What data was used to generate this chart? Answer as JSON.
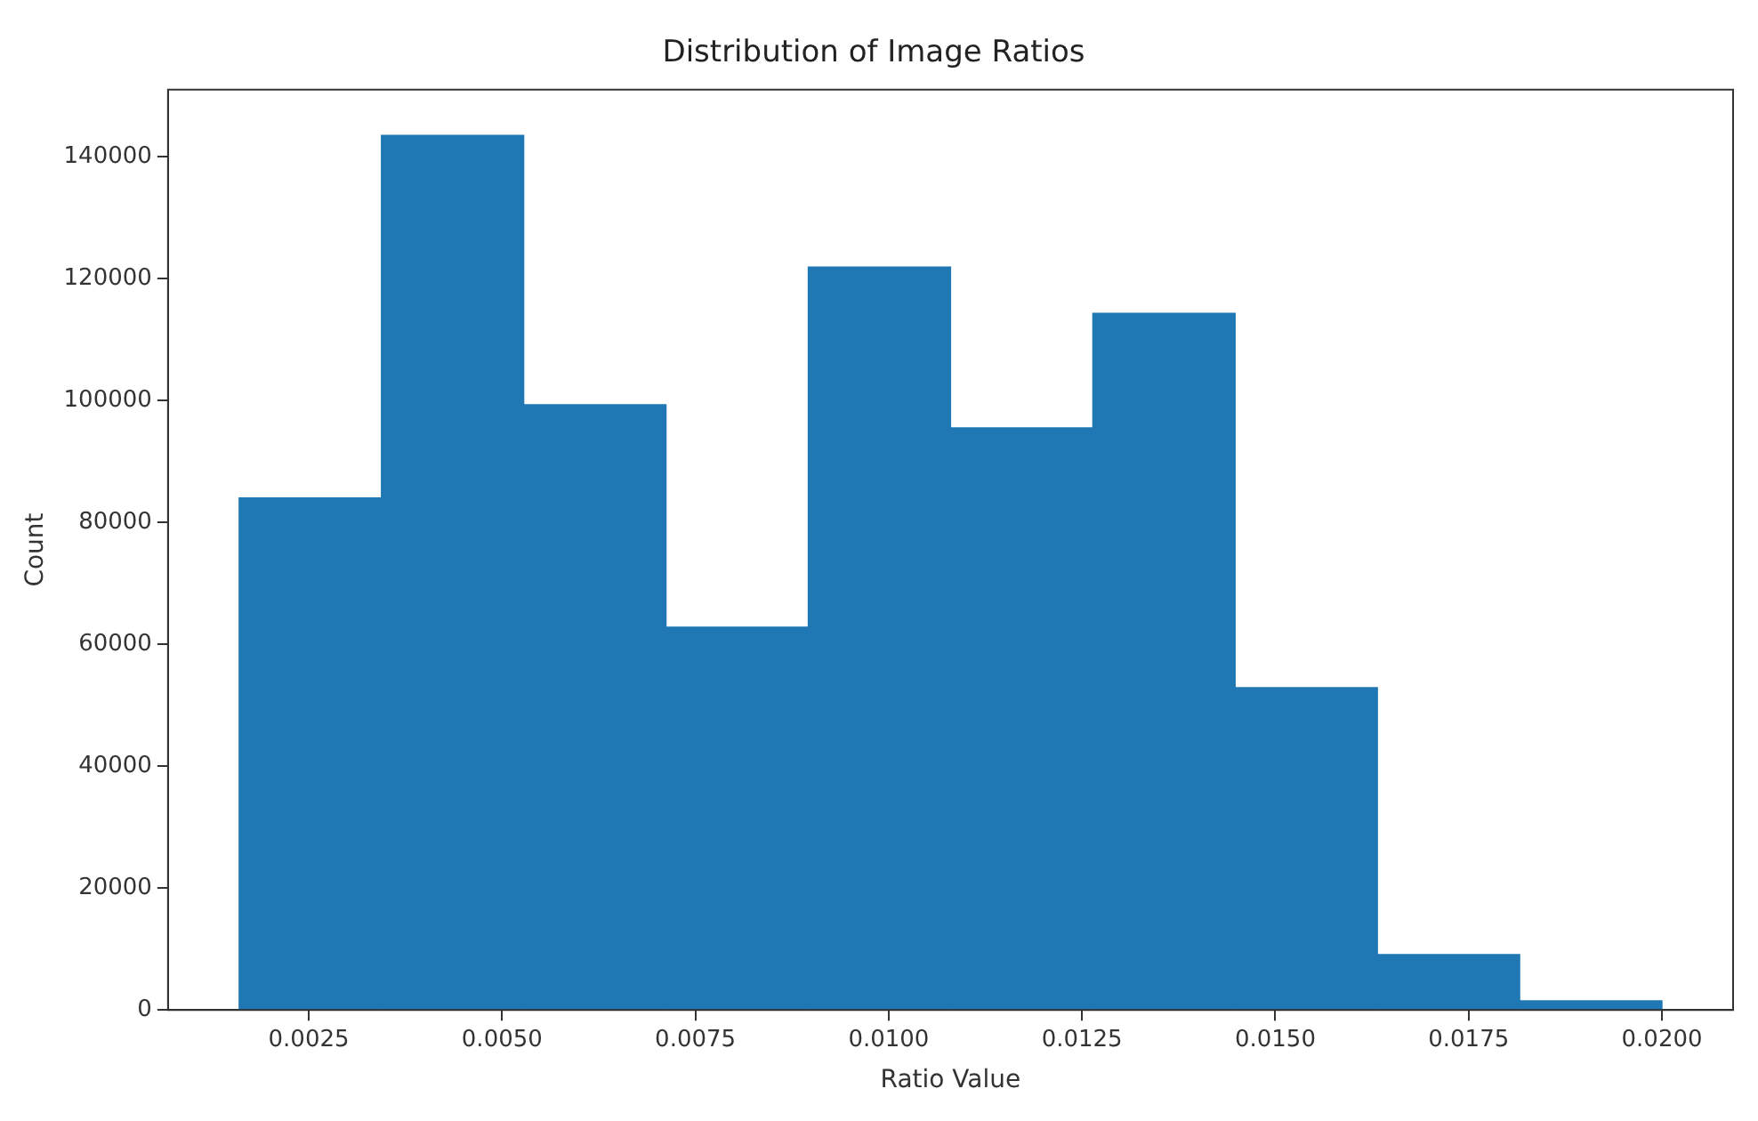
{
  "chart_data": {
    "type": "histogram",
    "title": "Distribution of Image Ratios",
    "xlabel": "Ratio Value",
    "ylabel": "Count",
    "bins": [
      0.0016,
      0.00344,
      0.00528,
      0.00712,
      0.00896,
      0.0108,
      0.01264,
      0.01448,
      0.01632,
      0.01816,
      0.02
    ],
    "values": [
      84000,
      143500,
      99300,
      62800,
      121900,
      95500,
      114300,
      52900,
      9100,
      1500
    ],
    "color": "#1f77b4",
    "xlim": [
      0.00068,
      0.02092
    ],
    "xticks": [
      0.0025,
      {
        "value": 0.005,
        "label": "0.0050"
      },
      0.0075,
      {
        "value": 0.01,
        "label": "0.0100"
      },
      0.0125,
      {
        "value": 0.015,
        "label": "0.0150"
      },
      0.0175,
      {
        "value": 0.02,
        "label": "0.0200"
      }
    ],
    "ylim": [
      0,
      151000
    ],
    "yticks": [
      0,
      20000,
      40000,
      60000,
      80000,
      100000,
      120000,
      140000
    ],
    "grid": false,
    "legend": false
  }
}
